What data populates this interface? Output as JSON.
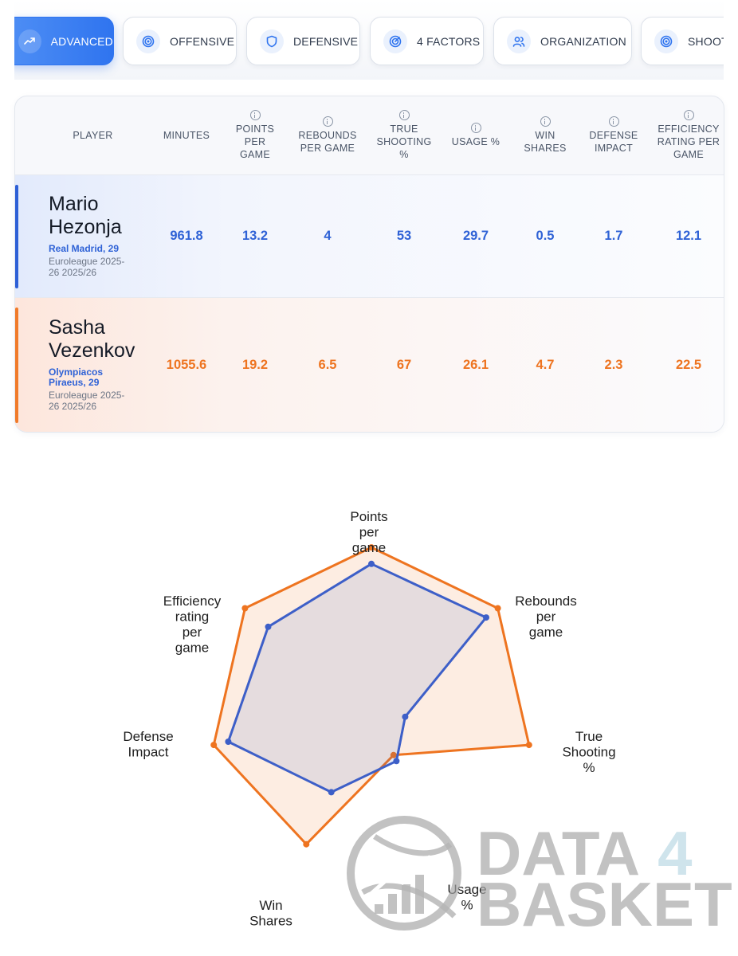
{
  "tabs": [
    {
      "label": "ADVANCED",
      "icon": "trending-up-icon",
      "active": true
    },
    {
      "label": "OFFENSIVE",
      "icon": "target-icon",
      "active": false
    },
    {
      "label": "DEFENSIVE",
      "icon": "shield-icon",
      "active": false
    },
    {
      "label": "4 FACTORS",
      "icon": "radar-icon",
      "active": false
    },
    {
      "label": "ORGANIZATION",
      "icon": "users-icon",
      "active": false
    },
    {
      "label": "SHOOTI",
      "icon": "target-icon",
      "active": false
    }
  ],
  "table": {
    "headers": {
      "player": "PLAYER",
      "minutes": "MINUTES",
      "ppg": [
        "POINTS",
        "PER",
        "GAME"
      ],
      "rpg": [
        "REBOUNDS",
        "PER GAME"
      ],
      "ts": [
        "TRUE",
        "SHOOTING",
        "%"
      ],
      "usage": [
        "USAGE %"
      ],
      "ws": [
        "WIN",
        "SHARES"
      ],
      "di": [
        "DEFENSE",
        "IMPACT"
      ],
      "eff": [
        "EFFICIENCY",
        "RATING PER",
        "GAME"
      ]
    },
    "players": [
      {
        "first": "Mario",
        "last": "Hezonja",
        "team": [
          "Real Madrid, 29"
        ],
        "competition": [
          "Euroleague 2025-",
          "26 2025/26"
        ],
        "values": [
          "961.8",
          "13.2",
          "4",
          "53",
          "29.7",
          "0.5",
          "1.7",
          "12.1"
        ],
        "color": "#2f62d6"
      },
      {
        "first": "Sasha",
        "last": "Vezenkov",
        "team": [
          "Olympiacos",
          "Piraeus, 29"
        ],
        "competition": [
          "Euroleague 2025-",
          "26 2025/26"
        ],
        "values": [
          "1055.6",
          "19.2",
          "6.5",
          "67",
          "26.1",
          "4.7",
          "2.3",
          "22.5"
        ],
        "color": "#ee7420"
      }
    ]
  },
  "chart_data": {
    "type": "radar",
    "axes": [
      [
        "Points",
        "per",
        "game"
      ],
      [
        "Rebounds",
        "per",
        "game"
      ],
      [
        "True",
        "Shooting",
        "%"
      ],
      [
        "Usage",
        "%"
      ],
      [
        "Win",
        "Shares"
      ],
      [
        "Defense",
        "Impact"
      ],
      [
        "Efficiency",
        "rating",
        "per",
        "game"
      ]
    ],
    "series": [
      {
        "name": "Sasha Vezenkov",
        "color": "#ee7420",
        "values": [
          0.98,
          0.98,
          0.98,
          0.31,
          0.91,
          0.98,
          0.98
        ]
      },
      {
        "name": "Mario Hezonja",
        "color": "#3d5fc8",
        "values": [
          0.88,
          0.89,
          0.21,
          0.35,
          0.56,
          0.89,
          0.8
        ]
      }
    ]
  },
  "watermark": {
    "line1a": "DATA",
    "line1b": "4",
    "line2": "BASKET"
  }
}
